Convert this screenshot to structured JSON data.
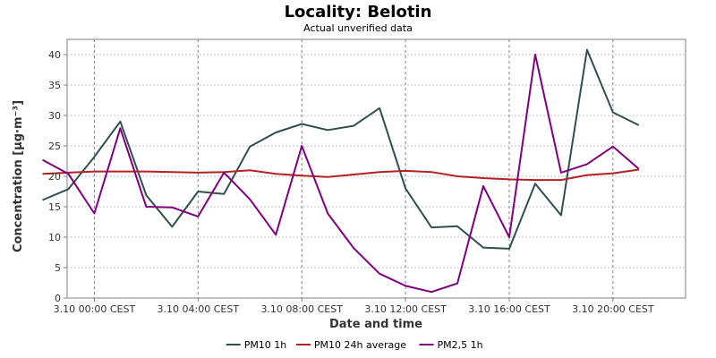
{
  "chart_data": {
    "type": "line",
    "title": "Locality: Belotin",
    "subtitle": "Actual unverified data",
    "xlabel": "Date and time",
    "ylabel": "Concentration [µg·m⁻³]",
    "ylim": [
      0,
      42.5
    ],
    "yticks": [
      0,
      5,
      10,
      15,
      20,
      25,
      30,
      35,
      40
    ],
    "xlim": [
      -1.05,
      22.8
    ],
    "xticks": [
      {
        "x": 0,
        "label": "3.10 00:00 CEST"
      },
      {
        "x": 4,
        "label": "3.10 04:00 CEST"
      },
      {
        "x": 8,
        "label": "3.10 08:00 CEST"
      },
      {
        "x": 12,
        "label": "3.10 12:00 CEST"
      },
      {
        "x": 16,
        "label": "3.10 16:00 CEST"
      },
      {
        "x": 20,
        "label": "3.10 20:00 CEST"
      }
    ],
    "x": [
      -2,
      -1,
      0,
      1,
      2,
      3,
      4,
      5,
      6,
      7,
      8,
      9,
      10,
      11,
      12,
      13,
      14,
      15,
      16,
      17,
      18,
      19,
      20,
      21
    ],
    "grid": true,
    "legend_position": "bottom",
    "series": [
      {
        "name": "PM10 1h",
        "color": "#2f4f4f",
        "values": [
          16.1,
          17.9,
          23.2,
          29.0,
          16.9,
          11.7,
          17.5,
          17.1,
          24.9,
          27.2,
          28.6,
          27.6,
          28.3,
          31.2,
          18.0,
          11.6,
          11.8,
          8.3,
          8.1,
          18.8,
          13.6,
          40.8,
          30.5,
          28.4
        ]
      },
      {
        "name": "PM10 24h average",
        "color": "#b22222",
        "values": [
          20.4,
          20.6,
          20.8,
          20.8,
          20.8,
          20.7,
          20.6,
          20.7,
          21.0,
          20.4,
          20.1,
          19.9,
          20.3,
          20.7,
          20.9,
          20.7,
          20.0,
          19.7,
          19.5,
          19.4,
          19.4,
          20.2,
          20.5,
          21.1
        ]
      },
      {
        "name": "PM2,5 1h",
        "color": "#800080",
        "values": [
          22.7,
          20.4,
          13.9,
          27.9,
          15.0,
          14.9,
          13.4,
          20.6,
          16.2,
          10.4,
          25.0,
          13.9,
          8.2,
          4.0,
          2.0,
          1.0,
          2.4,
          18.4,
          10.0,
          40.0,
          20.6,
          22.0,
          24.9,
          21.2
        ]
      }
    ]
  }
}
